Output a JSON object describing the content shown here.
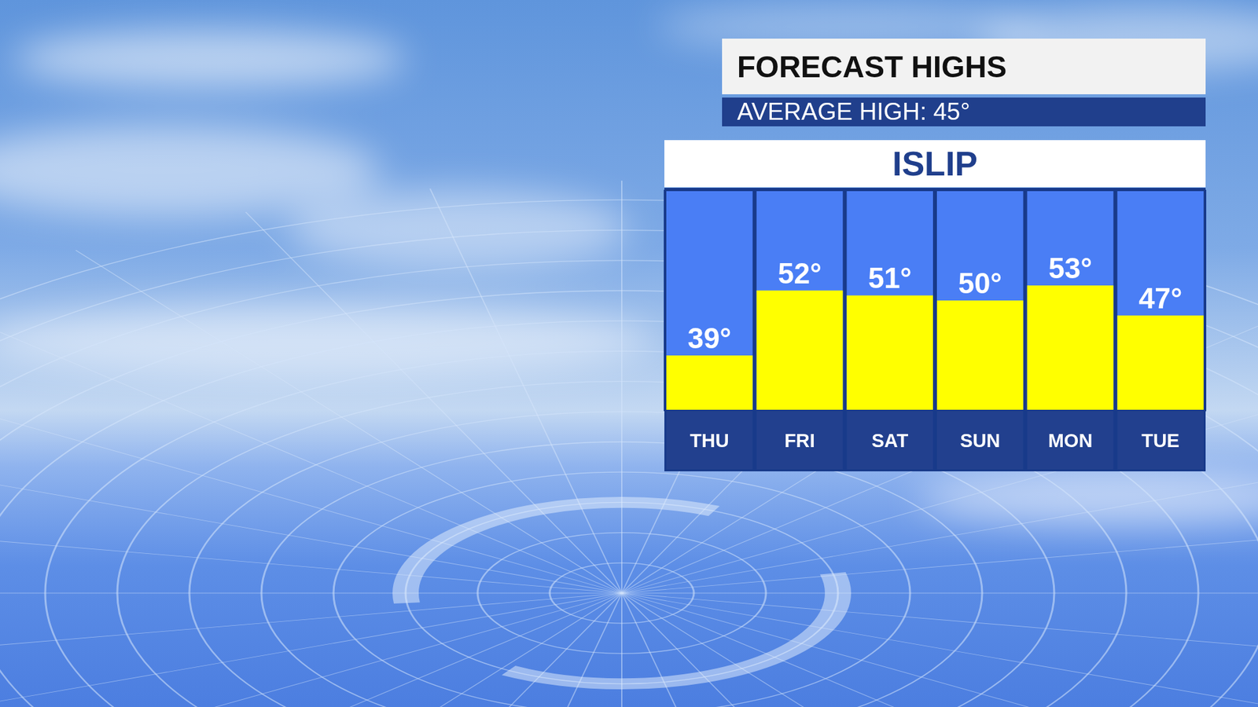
{
  "chart_data": {
    "type": "bar",
    "title": "FORECAST HIGHS",
    "subtitle": "AVERAGE HIGH: 45°",
    "panel_title": "ISLIP",
    "categories": [
      "THU",
      "FRI",
      "SAT",
      "SUN",
      "MON",
      "TUE"
    ],
    "values": [
      39,
      52,
      51,
      50,
      53,
      47
    ],
    "value_labels": [
      "39°",
      "52°",
      "51°",
      "50°",
      "53°",
      "47°"
    ],
    "color": "#ffff00",
    "ylim": [
      28,
      72
    ],
    "data_labels": true,
    "tick_labels": "x"
  }
}
